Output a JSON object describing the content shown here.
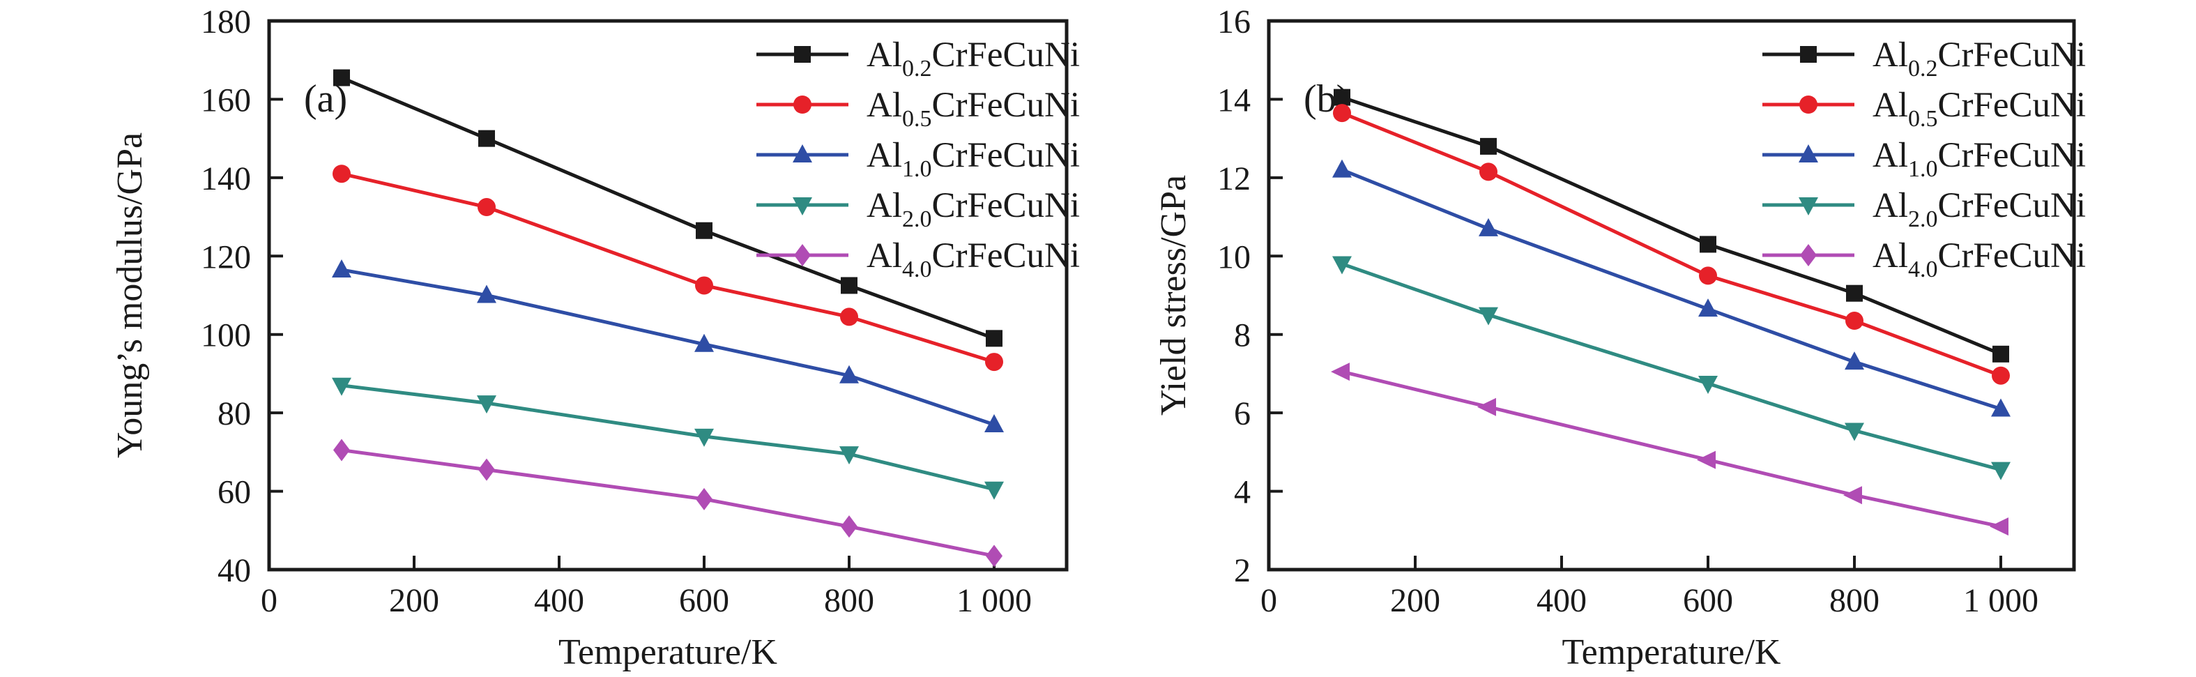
{
  "figure": {
    "background": "#ffffff",
    "frame_color": "#1a1a1a",
    "panel_tags": [
      "(a)",
      "(b)"
    ]
  },
  "chart_data": [
    {
      "type": "line",
      "panel_tag": "(a)",
      "title": "",
      "xlabel": "Temperature/K",
      "ylabel": "Young’s modulus/GPa",
      "xlim": [
        0,
        1100
      ],
      "ylim": [
        40,
        180
      ],
      "xticks": [
        0,
        200,
        400,
        600,
        800,
        1000
      ],
      "xtick_labels": [
        "0",
        "200",
        "400",
        "600",
        "800",
        "1 000"
      ],
      "yticks": [
        40,
        60,
        80,
        100,
        120,
        140,
        160,
        180
      ],
      "grid": false,
      "legend_position": "top-right-inside",
      "x": [
        100,
        300,
        600,
        800,
        1000
      ],
      "series": [
        {
          "name": "Al0.2CrFeCuNi",
          "label_parts": [
            "Al",
            "0.2",
            "CrFeCuNi"
          ],
          "color": "#1a1a1a",
          "marker": "square",
          "legend_marker": "square",
          "values": [
            165.5,
            150.0,
            126.5,
            112.5,
            99.0
          ]
        },
        {
          "name": "Al0.5CrFeCuNi",
          "label_parts": [
            "Al",
            "0.5",
            "CrFeCuNi"
          ],
          "color": "#e62129",
          "marker": "circle",
          "legend_marker": "circle",
          "values": [
            141.0,
            132.5,
            112.5,
            104.5,
            93.0
          ]
        },
        {
          "name": "Al1.0CrFeCuNi",
          "label_parts": [
            "Al",
            "1.0",
            "CrFeCuNi"
          ],
          "color": "#2e4da5",
          "marker": "triangle-up",
          "legend_marker": "triangle-up",
          "values": [
            116.5,
            110.0,
            97.5,
            89.5,
            77.0
          ]
        },
        {
          "name": "Al2.0CrFeCuNi",
          "label_parts": [
            "Al",
            "2.0",
            "CrFeCuNi"
          ],
          "color": "#2f8b82",
          "marker": "triangle-down",
          "legend_marker": "triangle-down",
          "values": [
            87.0,
            82.5,
            74.0,
            69.5,
            60.5
          ]
        },
        {
          "name": "Al4.0CrFeCuNi",
          "label_parts": [
            "Al",
            "4.0",
            "CrFeCuNi"
          ],
          "color": "#b04cb4",
          "marker": "diamond",
          "legend_marker": "diamond",
          "values": [
            70.5,
            65.5,
            58.0,
            51.0,
            43.5
          ]
        }
      ]
    },
    {
      "type": "line",
      "panel_tag": "(b)",
      "title": "",
      "xlabel": "Temperature/K",
      "ylabel": "Yield stress/GPa",
      "xlim": [
        0,
        1100
      ],
      "ylim": [
        2,
        16
      ],
      "xticks": [
        0,
        200,
        400,
        600,
        800,
        1000
      ],
      "xtick_labels": [
        "0",
        "200",
        "400",
        "600",
        "800",
        "1 000"
      ],
      "yticks": [
        2,
        4,
        6,
        8,
        10,
        12,
        14,
        16
      ],
      "grid": false,
      "legend_position": "top-right-inside",
      "x": [
        100,
        300,
        600,
        800,
        1000
      ],
      "series": [
        {
          "name": "Al0.2CrFeCuNi",
          "label_parts": [
            "Al",
            "0.2",
            "CrFeCuNi"
          ],
          "color": "#1a1a1a",
          "marker": "square",
          "legend_marker": "square",
          "values": [
            14.05,
            12.8,
            10.3,
            9.05,
            7.5
          ]
        },
        {
          "name": "Al0.5CrFeCuNi",
          "label_parts": [
            "Al",
            "0.5",
            "CrFeCuNi"
          ],
          "color": "#e62129",
          "marker": "circle",
          "legend_marker": "circle",
          "values": [
            13.65,
            12.15,
            9.5,
            8.35,
            6.95
          ]
        },
        {
          "name": "Al1.0CrFeCuNi",
          "label_parts": [
            "Al",
            "1.0",
            "CrFeCuNi"
          ],
          "color": "#2e4da5",
          "marker": "triangle-up",
          "legend_marker": "triangle-up",
          "values": [
            12.2,
            10.7,
            8.65,
            7.3,
            6.1
          ]
        },
        {
          "name": "Al2.0CrFeCuNi",
          "label_parts": [
            "Al",
            "2.0",
            "CrFeCuNi"
          ],
          "color": "#2f8b82",
          "marker": "triangle-down",
          "legend_marker": "triangle-down",
          "values": [
            9.8,
            8.5,
            6.75,
            5.55,
            4.55
          ]
        },
        {
          "name": "Al4.0CrFeCuNi",
          "label_parts": [
            "Al",
            "4.0",
            "CrFeCuNi"
          ],
          "color": "#b04cb4",
          "marker": "triangle-left",
          "legend_marker": "diamond",
          "values": [
            7.05,
            6.15,
            4.8,
            3.9,
            3.1
          ]
        }
      ]
    }
  ]
}
